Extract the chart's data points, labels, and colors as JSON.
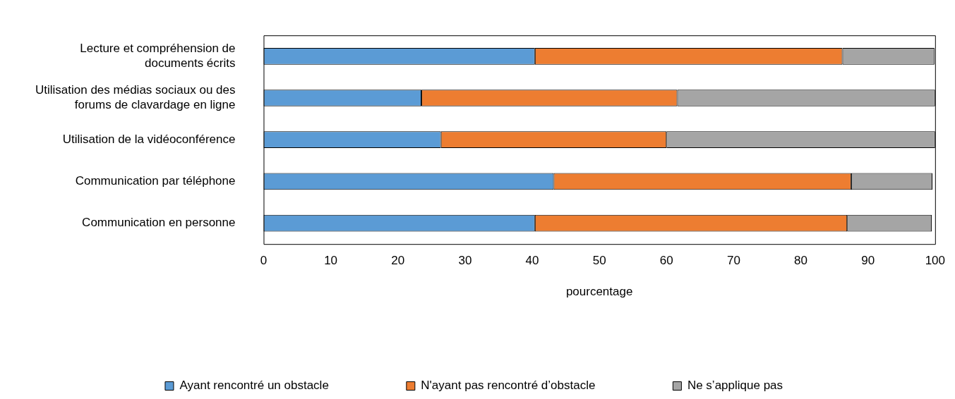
{
  "chart_data": {
    "type": "bar",
    "orientation": "horizontal",
    "stacked": true,
    "categories": [
      "Lecture et compréhension de documents écrits",
      "Utilisation des médias sociaux ou des forums de clavardage en ligne",
      "Utilisation de la vidéoconférence",
      "Communication par téléphone",
      "Communication en personne"
    ],
    "series": [
      {
        "name": "Ayant rencontré un obstacle",
        "color": "#5b9bd5",
        "values": [
          40.4,
          23.5,
          26.4,
          43.2,
          40.4
        ]
      },
      {
        "name": "N'ayant pas rencontré d’obstacle",
        "color": "#ed7d31",
        "values": [
          45.8,
          38.1,
          33.6,
          44.3,
          46.5
        ]
      },
      {
        "name": "Ne s’applique pas",
        "color": "#a5a5a5",
        "values": [
          13.7,
          38.4,
          40.0,
          12.1,
          12.6
        ]
      }
    ],
    "xlabel": "pourcentage",
    "xlim": [
      0,
      100
    ],
    "xticks": [
      0,
      10,
      20,
      30,
      40,
      50,
      60,
      70,
      80,
      90,
      100
    ],
    "grid": false,
    "legend": "bottom"
  }
}
